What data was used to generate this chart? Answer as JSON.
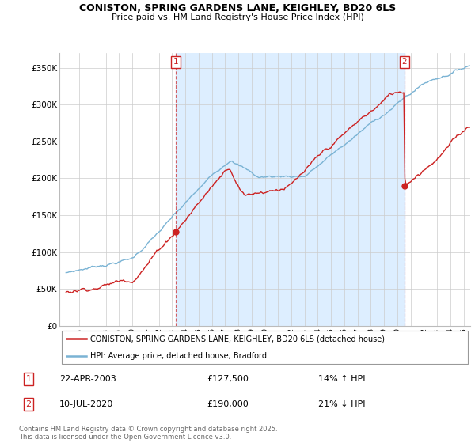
{
  "title_line1": "CONISTON, SPRING GARDENS LANE, KEIGHLEY, BD20 6LS",
  "title_line2": "Price paid vs. HM Land Registry's House Price Index (HPI)",
  "ylabel_ticks": [
    "£0",
    "£50K",
    "£100K",
    "£150K",
    "£200K",
    "£250K",
    "£300K",
    "£350K"
  ],
  "ytick_values": [
    0,
    50000,
    100000,
    150000,
    200000,
    250000,
    300000,
    350000
  ],
  "ylim": [
    0,
    370000
  ],
  "xlim_start": 1994.5,
  "xlim_end": 2025.5,
  "xticks": [
    1995,
    1996,
    1997,
    1998,
    1999,
    2000,
    2001,
    2002,
    2003,
    2004,
    2005,
    2006,
    2007,
    2008,
    2009,
    2010,
    2011,
    2012,
    2013,
    2014,
    2015,
    2016,
    2017,
    2018,
    2019,
    2020,
    2021,
    2022,
    2023,
    2024,
    2025
  ],
  "hpi_color": "#7ab3d4",
  "sale_color": "#cc2222",
  "marker1_x": 2003.3,
  "marker1_y": 127500,
  "marker2_x": 2020.53,
  "marker2_y": 190000,
  "legend_sale": "CONISTON, SPRING GARDENS LANE, KEIGHLEY, BD20 6LS (detached house)",
  "legend_hpi": "HPI: Average price, detached house, Bradford",
  "note1_label": "1",
  "note1_date": "22-APR-2003",
  "note1_price": "£127,500",
  "note1_pct": "14% ↑ HPI",
  "note2_label": "2",
  "note2_date": "10-JUL-2020",
  "note2_price": "£190,000",
  "note2_pct": "21% ↓ HPI",
  "footnote": "Contains HM Land Registry data © Crown copyright and database right 2025.\nThis data is licensed under the Open Government Licence v3.0.",
  "bg_color": "#ffffff",
  "grid_color": "#cccccc",
  "shade_color": "#ddeeff"
}
